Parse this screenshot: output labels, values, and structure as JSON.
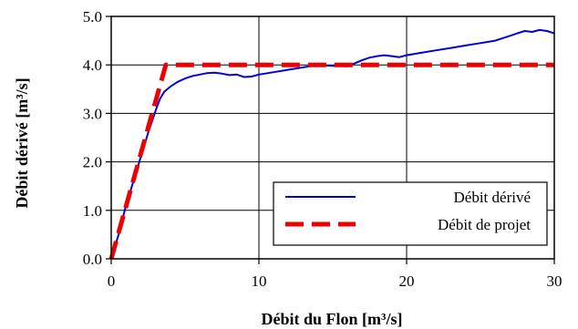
{
  "chart_data": {
    "type": "line",
    "title": "",
    "xlabel": "Débit du Flon [m³/s]",
    "ylabel": "Débit dérivé [m³/s]",
    "xlim": [
      0,
      30
    ],
    "ylim": [
      0,
      5
    ],
    "x_ticks": [
      "0",
      "10",
      "20",
      "30"
    ],
    "y_ticks": [
      "0.0",
      "1.0",
      "2.0",
      "3.0",
      "4.0",
      "5.0"
    ],
    "grid": true,
    "legend_position": "bottom-right",
    "series": [
      {
        "name": "Débit dérivé",
        "color": "#0000dd",
        "style": "solid",
        "x": [
          0,
          0.5,
          1,
          1.5,
          2,
          2.5,
          3,
          3.3,
          3.6,
          4,
          4.5,
          5,
          5.5,
          6,
          6.5,
          7,
          7.5,
          8,
          8.5,
          9,
          9.5,
          10,
          11,
          12,
          13,
          14,
          15,
          16,
          17,
          17.5,
          18,
          18.5,
          19,
          19.5,
          20,
          21,
          22,
          23,
          24,
          25,
          26,
          27,
          27.5,
          28,
          28.5,
          29,
          29.5,
          30
        ],
        "y": [
          0,
          0.5,
          1.1,
          1.6,
          2.1,
          2.6,
          3.05,
          3.3,
          3.45,
          3.55,
          3.65,
          3.72,
          3.77,
          3.8,
          3.83,
          3.84,
          3.82,
          3.79,
          3.8,
          3.75,
          3.76,
          3.8,
          3.85,
          3.9,
          3.95,
          4.0,
          3.98,
          3.97,
          4.1,
          4.15,
          4.18,
          4.2,
          4.18,
          4.16,
          4.2,
          4.25,
          4.3,
          4.35,
          4.4,
          4.45,
          4.5,
          4.6,
          4.65,
          4.7,
          4.68,
          4.72,
          4.7,
          4.65
        ]
      },
      {
        "name": "Débit de projet",
        "color": "#ee0000",
        "style": "dashed",
        "x": [
          0,
          3.7,
          30
        ],
        "y": [
          0,
          4.0,
          4.0
        ]
      }
    ]
  }
}
